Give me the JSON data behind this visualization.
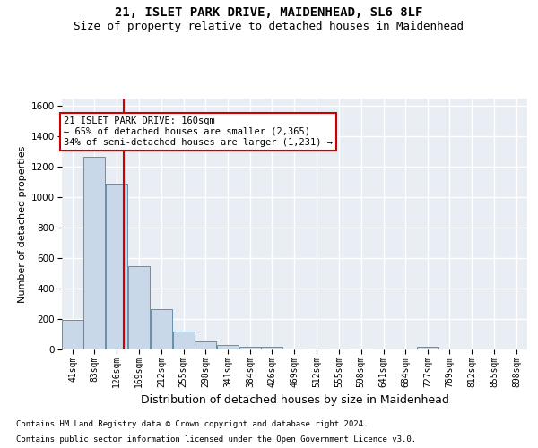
{
  "title1": "21, ISLET PARK DRIVE, MAIDENHEAD, SL6 8LF",
  "title2": "Size of property relative to detached houses in Maidenhead",
  "xlabel": "Distribution of detached houses by size in Maidenhead",
  "ylabel": "Number of detached properties",
  "footnote1": "Contains HM Land Registry data © Crown copyright and database right 2024.",
  "footnote2": "Contains public sector information licensed under the Open Government Licence v3.0.",
  "annotation_line1": "21 ISLET PARK DRIVE: 160sqm",
  "annotation_line2": "← 65% of detached houses are smaller (2,365)",
  "annotation_line3": "34% of semi-detached houses are larger (1,231) →",
  "bar_edges": [
    41,
    83,
    126,
    169,
    212,
    255,
    298,
    341,
    384,
    426,
    469,
    512,
    555,
    598,
    641,
    684,
    727,
    769,
    812,
    855,
    898
  ],
  "bar_heights": [
    195,
    1265,
    1090,
    550,
    265,
    120,
    55,
    30,
    20,
    15,
    5,
    5,
    5,
    5,
    0,
    0,
    20,
    0,
    0,
    0,
    0
  ],
  "bar_color": "#c8d8e8",
  "bar_edge_color": "#5580a0",
  "red_line_x": 160,
  "ylim": [
    0,
    1650
  ],
  "yticks": [
    0,
    200,
    400,
    600,
    800,
    1000,
    1200,
    1400,
    1600
  ],
  "background_color": "#e8eef4",
  "grid_color": "#ffffff",
  "red_line_color": "#cc0000",
  "annotation_box_color": "#ffffff",
  "annotation_box_edge": "#cc0000",
  "title_fontsize": 10,
  "subtitle_fontsize": 9,
  "tick_label_fontsize": 7,
  "ylabel_fontsize": 8,
  "xlabel_fontsize": 9,
  "annotation_fontsize": 7.5,
  "footnote_fontsize": 6.5
}
